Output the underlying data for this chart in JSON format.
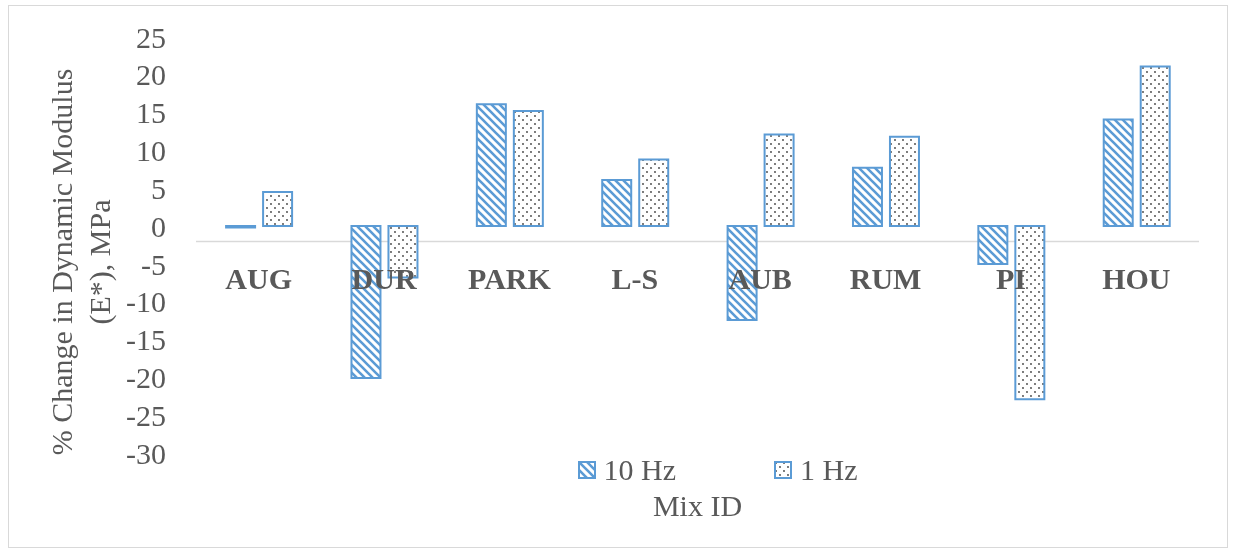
{
  "chart_data": {
    "type": "bar",
    "categories": [
      "AUG",
      "DUR",
      "PARK",
      "L-S",
      "AUB",
      "RUM",
      "PI",
      "HOU"
    ],
    "series": [
      {
        "name": "10 Hz",
        "color": "#5b9bd5",
        "values": [
          -0.2,
          -20.1,
          16.1,
          6.1,
          -12.4,
          7.7,
          -5.0,
          14.1
        ]
      },
      {
        "name": "1 Hz",
        "color": "#5b9bd5",
        "values": [
          4.5,
          -6.8,
          15.2,
          8.8,
          12.1,
          11.8,
          -22.9,
          21.1
        ]
      }
    ],
    "xlabel": "Mix ID",
    "ylabel": "% Change in Dynamic Modulus (E*), MPa",
    "ylim": [
      -30,
      25
    ],
    "yticks": [
      -30,
      -25,
      -20,
      -15,
      -10,
      -5,
      0,
      5,
      10,
      15,
      20,
      25
    ],
    "grid": false,
    "legend": "bottom"
  }
}
